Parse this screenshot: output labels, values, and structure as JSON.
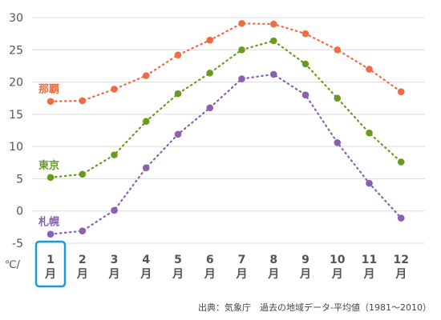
{
  "chart_data": {
    "type": "line",
    "unit_label": "℃/",
    "x_ticks": [
      {
        "num": "1",
        "suffix": "月"
      },
      {
        "num": "2",
        "suffix": "月"
      },
      {
        "num": "3",
        "suffix": "月"
      },
      {
        "num": "4",
        "suffix": "月"
      },
      {
        "num": "5",
        "suffix": "月"
      },
      {
        "num": "6",
        "suffix": "月"
      },
      {
        "num": "7",
        "suffix": "月"
      },
      {
        "num": "8",
        "suffix": "月"
      },
      {
        "num": "9",
        "suffix": "月"
      },
      {
        "num": "10",
        "suffix": "月"
      },
      {
        "num": "11",
        "suffix": "月"
      },
      {
        "num": "12",
        "suffix": "月"
      }
    ],
    "highlighted_month": "1",
    "y_ticks": [
      30,
      25,
      20,
      15,
      10,
      5,
      0,
      -5
    ],
    "ylim": [
      -5,
      30
    ],
    "grid": "horizontal",
    "series": [
      {
        "name": "那覇",
        "color": "#ee6b43",
        "values": [
          17.0,
          17.1,
          18.9,
          21.0,
          24.2,
          26.5,
          29.1,
          29.0,
          27.5,
          25.0,
          22.0,
          18.5
        ]
      },
      {
        "name": "東京",
        "color": "#6a9a1f",
        "values": [
          5.2,
          5.7,
          8.7,
          13.9,
          18.2,
          21.4,
          25.0,
          26.4,
          22.8,
          17.5,
          12.1,
          7.6
        ]
      },
      {
        "name": "札幌",
        "color": "#8a5fb4",
        "values": [
          -3.6,
          -3.1,
          0.1,
          6.7,
          11.9,
          16.0,
          20.5,
          21.2,
          18.0,
          10.6,
          4.3,
          -1.1
        ]
      }
    ],
    "source": "出典：気象庁　過去の地域データ-平均値（1981〜2010）"
  }
}
